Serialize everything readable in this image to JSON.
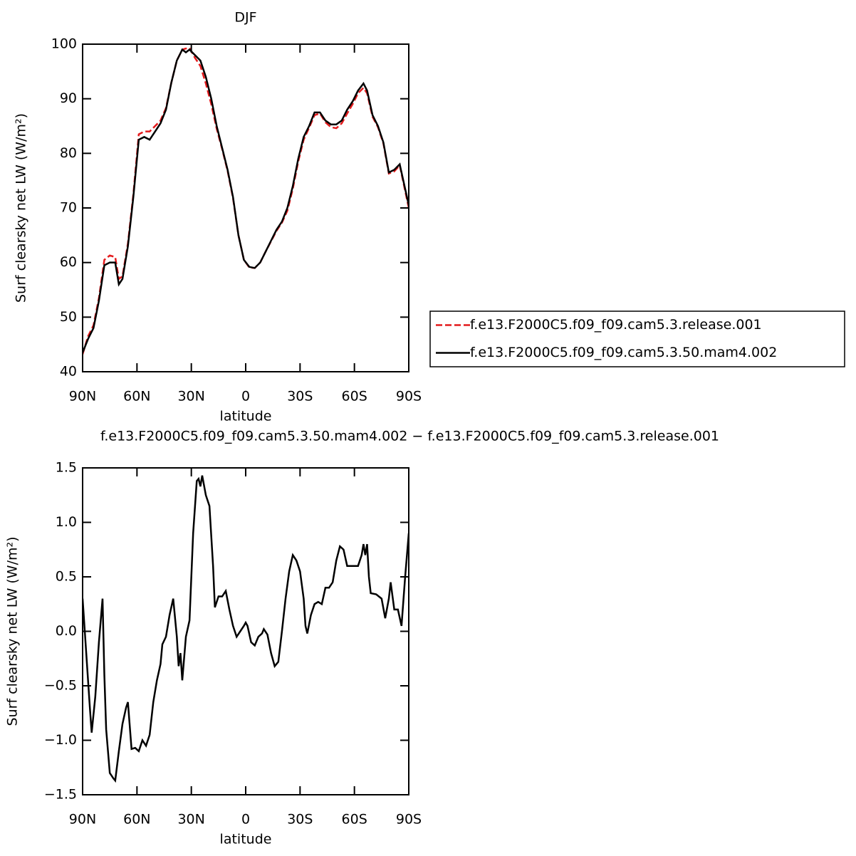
{
  "chart_data": [
    {
      "type": "line",
      "title": "DJF",
      "xlabel": "latitude",
      "ylabel": "Surf clearsky net LW (W/m²)",
      "x": [
        90,
        87,
        84,
        81,
        78,
        75,
        72,
        70,
        68,
        65,
        62,
        59,
        56,
        53,
        50,
        47,
        44,
        41,
        38,
        35,
        33,
        31,
        28,
        25,
        22,
        19,
        16,
        13,
        10,
        7,
        4,
        1,
        -2,
        -5,
        -8,
        -11,
        -14,
        -17,
        -20,
        -23,
        -26,
        -29,
        -32,
        -35,
        -38,
        -41,
        -44,
        -47,
        -50,
        -53,
        -56,
        -59,
        -62,
        -65,
        -67,
        -70,
        -73,
        -76,
        -79,
        -82,
        -85,
        -87,
        -90
      ],
      "series": [
        {
          "name": "f.e13.F2000C5.f09_f09.cam5.3.release.001",
          "color": "#e41a1c",
          "dash": true,
          "values": [
            43.2,
            46.5,
            48.5,
            53.5,
            60.5,
            61.3,
            61,
            57,
            57.5,
            63.5,
            72.5,
            83.5,
            84,
            84,
            85,
            86,
            88.3,
            93,
            97,
            99,
            99.2,
            99.3,
            97.5,
            96,
            92.8,
            89,
            84.5,
            80.8,
            76.8,
            71.8,
            65,
            60.5,
            59.1,
            59,
            60,
            62,
            63.9,
            65.8,
            67.3,
            69.5,
            73.5,
            78.5,
            82.5,
            84.7,
            87,
            87.3,
            85.7,
            84.8,
            84.6,
            85.5,
            87.3,
            89,
            91,
            92,
            91,
            86.7,
            84.8,
            81.8,
            76.3,
            76.7,
            77.8,
            74.7,
            70
          ]
        },
        {
          "name": "f.e13.F2000C5.f09_f09.cam5.3.50.mam4.002",
          "color": "#000000",
          "dash": false,
          "values": [
            43.5,
            46,
            48,
            53,
            59.5,
            60,
            60,
            56,
            57,
            63,
            72,
            82.5,
            83,
            82.5,
            84,
            85.5,
            88,
            93,
            97,
            99,
            98.5,
            99,
            98,
            97,
            94,
            90,
            85,
            81,
            77,
            72,
            65,
            60.5,
            59.2,
            59,
            60,
            62,
            64,
            66,
            67.5,
            70,
            74,
            79,
            83,
            85,
            87.5,
            87.5,
            86,
            85.3,
            85.3,
            86,
            88,
            89.5,
            91.5,
            92.8,
            91.5,
            87,
            85,
            82,
            76.5,
            77,
            78,
            75,
            70.5
          ]
        }
      ],
      "xlim": [
        90,
        -90
      ],
      "xticks": [
        {
          "value": 90,
          "label": "90N"
        },
        {
          "value": 60,
          "label": "60N"
        },
        {
          "value": 30,
          "label": "30N"
        },
        0,
        {
          "value": -30,
          "label": "30S"
        },
        {
          "value": -60,
          "label": "60S"
        },
        {
          "value": -90,
          "label": "90S"
        }
      ],
      "ylim": [
        40,
        100
      ],
      "yticks": [
        40,
        50,
        60,
        70,
        80,
        90,
        100
      ],
      "legend": "right"
    },
    {
      "type": "line",
      "title": "f.e13.F2000C5.f09_f09.cam5.3.50.mam4.002 − f.e13.F2000C5.f09_f09.cam5.3.release.001",
      "xlabel": "latitude",
      "ylabel": "Surf clearsky net LW (W/m²)",
      "x": [
        90,
        88,
        86,
        85,
        83,
        81,
        79,
        78,
        77,
        75,
        73,
        72,
        70,
        68,
        66,
        65,
        63,
        61,
        59,
        57,
        55,
        53,
        51,
        49,
        47,
        46,
        44,
        42,
        40,
        38,
        37,
        36,
        35,
        33,
        31,
        29,
        27,
        26,
        25,
        24,
        22,
        20,
        18,
        17,
        15,
        13,
        11,
        9,
        7,
        5,
        3,
        1,
        0,
        -1,
        -3,
        -5,
        -7,
        -9,
        -10,
        -12,
        -14,
        -16,
        -18,
        -20,
        -22,
        -24,
        -26,
        -28,
        -30,
        -32,
        -33,
        -34,
        -36,
        -38,
        -40,
        -42,
        -44,
        -46,
        -48,
        -50,
        -52,
        -54,
        -56,
        -58,
        -60,
        -62,
        -64,
        -65,
        -66,
        -67,
        -68,
        -69,
        -72,
        -75,
        -77,
        -79,
        -80,
        -82,
        -84,
        -86,
        -88,
        -90
      ],
      "series": [
        {
          "color": "#000000",
          "values": [
            0.3,
            -0.2,
            -0.7,
            -0.93,
            -0.6,
            -0.1,
            0.3,
            -0.4,
            -0.9,
            -1.3,
            -1.35,
            -1.37,
            -1.1,
            -0.85,
            -0.7,
            -0.65,
            -1.08,
            -1.07,
            -1.1,
            -1.0,
            -1.05,
            -0.95,
            -0.65,
            -0.45,
            -0.3,
            -0.12,
            -0.05,
            0.15,
            0.3,
            -0.05,
            -0.32,
            -0.2,
            -0.45,
            -0.05,
            0.1,
            0.9,
            1.38,
            1.4,
            1.33,
            1.43,
            1.25,
            1.15,
            0.6,
            0.22,
            0.32,
            0.32,
            0.37,
            0.2,
            0.05,
            -0.05,
            0.0,
            0.05,
            0.08,
            0.05,
            -0.1,
            -0.13,
            -0.05,
            -0.02,
            0.02,
            -0.03,
            -0.2,
            -0.32,
            -0.28,
            0.0,
            0.3,
            0.55,
            0.7,
            0.65,
            0.55,
            0.3,
            0.05,
            -0.02,
            0.15,
            0.25,
            0.27,
            0.25,
            0.4,
            0.4,
            0.45,
            0.65,
            0.78,
            0.75,
            0.6,
            0.6,
            0.6,
            0.6,
            0.7,
            0.8,
            0.7,
            0.8,
            0.5,
            0.35,
            0.34,
            0.3,
            0.12,
            0.3,
            0.45,
            0.2,
            0.2,
            0.05,
            0.5,
            0.9
          ]
        }
      ],
      "xlim": [
        90,
        -90
      ],
      "xticks": [
        {
          "value": 90,
          "label": "90N"
        },
        {
          "value": 60,
          "label": "60N"
        },
        {
          "value": 30,
          "label": "30N"
        },
        0,
        {
          "value": -30,
          "label": "30S"
        },
        {
          "value": -60,
          "label": "60S"
        },
        {
          "value": -90,
          "label": "90S"
        }
      ],
      "ylim": [
        -1.5,
        1.5
      ],
      "yticks": [
        {
          "value": -1.5,
          "label": "−1.5"
        },
        {
          "value": -1,
          "label": "−1.0"
        },
        {
          "value": -0.5,
          "label": "−0.5"
        },
        {
          "value": 0,
          "label": "0.0"
        },
        0.5,
        {
          "value": 1,
          "label": "1.0"
        },
        1.5
      ]
    }
  ]
}
